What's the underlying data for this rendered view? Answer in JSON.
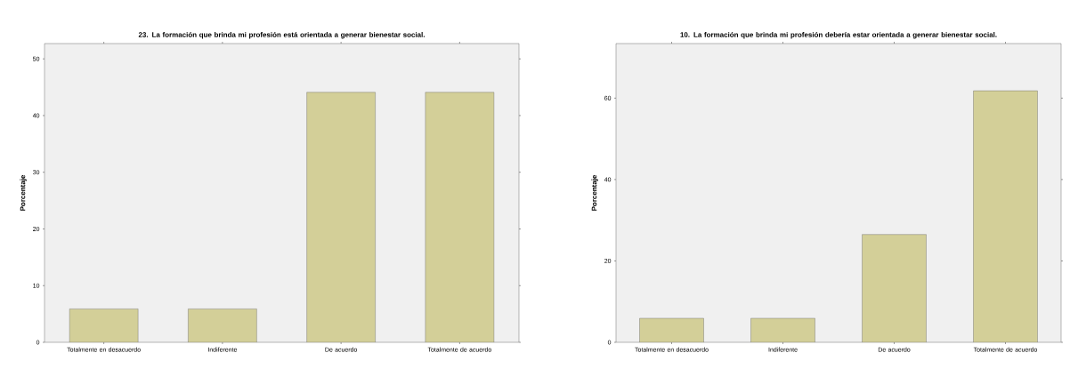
{
  "chart_data": [
    {
      "type": "bar",
      "title": "23. La formación que brinda mi profesión está orientada a generar bienestar social.",
      "ylabel": "Porcentaje",
      "categories": [
        "Totalmente en desacuerdo",
        "Indiferente",
        "De acuerdo",
        "Totalmente de acuerdo"
      ],
      "values": [
        5.9,
        5.9,
        44.1,
        44.1
      ],
      "color": "#d3cf98",
      "ylim": [
        0,
        52.7
      ],
      "yticks": [
        0,
        10,
        20,
        30,
        40,
        50
      ],
      "grid": false
    },
    {
      "type": "bar",
      "title": "10. La formación que brinda mi profesión debería estar orientada a generar bienestar social.",
      "ylabel": "Porcentaje",
      "categories": [
        "Totalmente en desacuerdo",
        "Indiferente",
        "De acuerdo",
        "Totalmente de acuerdo"
      ],
      "values": [
        5.9,
        5.9,
        26.5,
        61.8
      ],
      "color": "#d3cf98",
      "ylim": [
        0,
        73.4
      ],
      "yticks": [
        0,
        20,
        40,
        60
      ],
      "grid": false
    }
  ]
}
